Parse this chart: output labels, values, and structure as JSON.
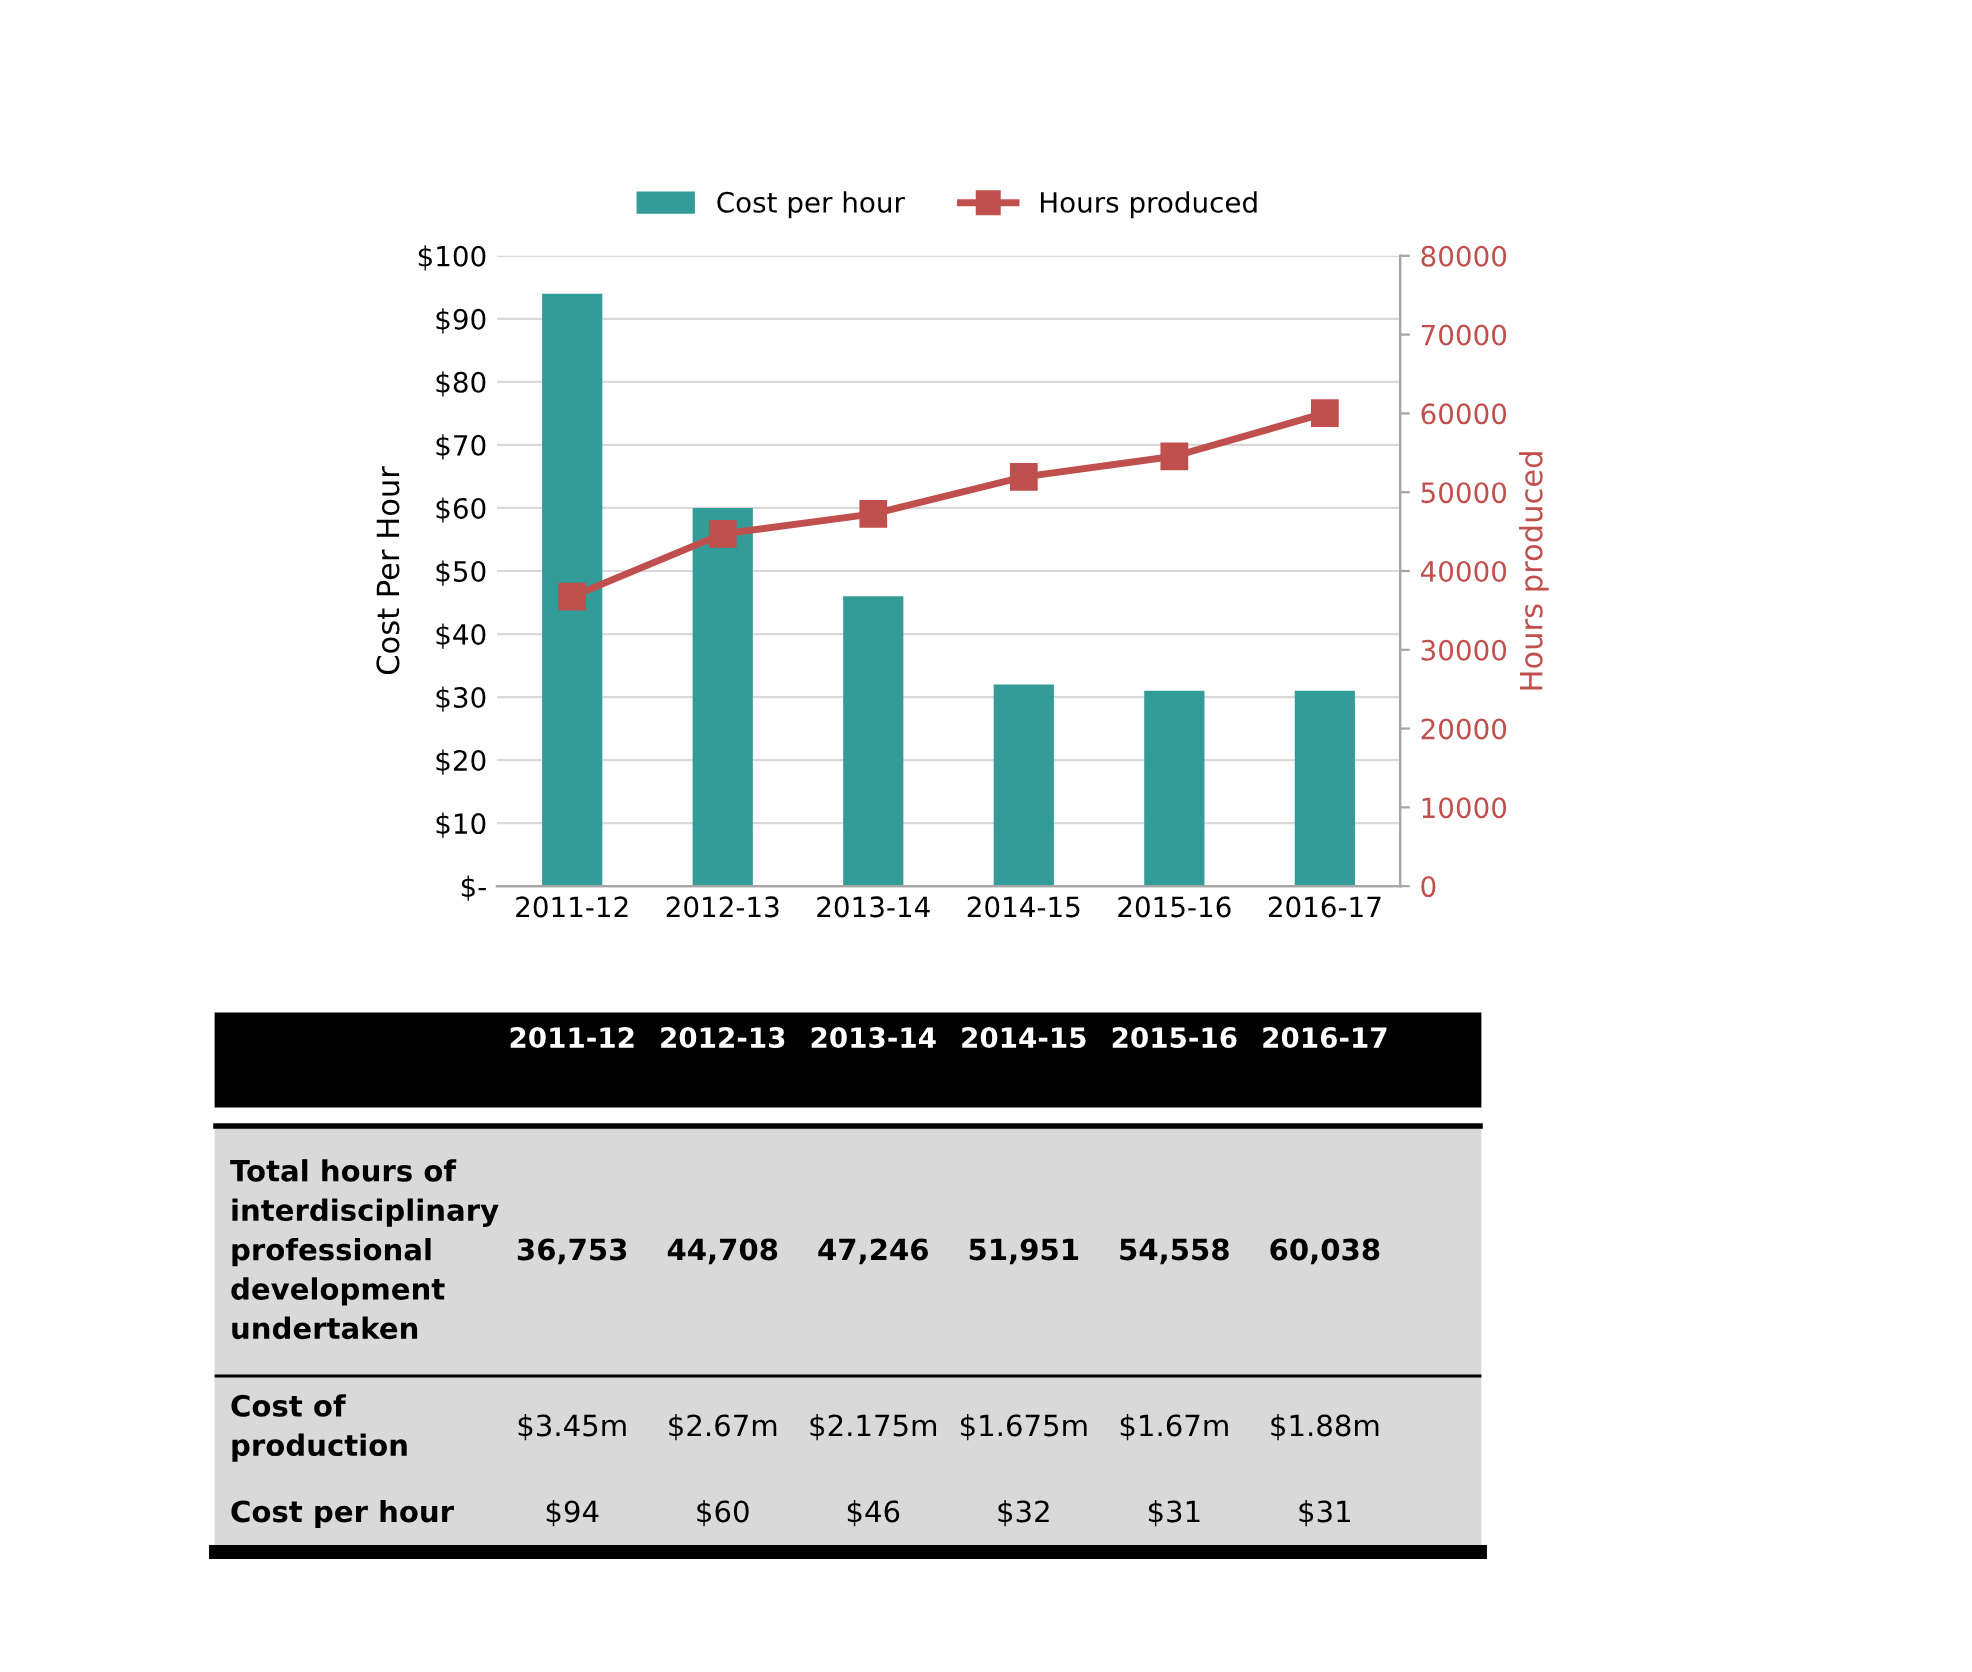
{
  "chart_data": {
    "type": "bar",
    "categories": [
      "2011-12",
      "2012-13",
      "2013-14",
      "2014-15",
      "2015-16",
      "2016-17"
    ],
    "series": [
      {
        "name": "Cost per hour",
        "color": "#339c99",
        "values": [
          94,
          60,
          46,
          32,
          31,
          31
        ],
        "value_labels": [
          "$94",
          "$60",
          "$46",
          "$32",
          "$31",
          "$31"
        ]
      },
      {
        "name": "Hours produced",
        "type": "line",
        "axis": "y2",
        "color": "#c0504d",
        "marker": "square",
        "values": [
          36753,
          44708,
          47246,
          51951,
          54558,
          60038
        ],
        "value_labels": [
          "36,753",
          "44,708",
          "47,246",
          "51,951",
          "54,558",
          "60,038"
        ]
      }
    ],
    "ylabel": "Cost Per Hour",
    "y2label": "Hours produced",
    "ylim": [
      0,
      100
    ],
    "yticks": [
      {
        "value": 0,
        "label": "$-"
      },
      {
        "value": 10,
        "label": "$10"
      },
      {
        "value": 20,
        "label": "$20"
      },
      {
        "value": 30,
        "label": "$30"
      },
      {
        "value": 40,
        "label": "$40"
      },
      {
        "value": 50,
        "label": "$50"
      },
      {
        "value": 60,
        "label": "$60"
      },
      {
        "value": 70,
        "label": "$70"
      },
      {
        "value": 80,
        "label": "$80"
      },
      {
        "value": 90,
        "label": "$90"
      },
      {
        "value": 100,
        "label": "$100"
      }
    ],
    "y2lim": [
      0,
      80000
    ],
    "y2ticks": [
      0,
      10000,
      20000,
      30000,
      40000,
      50000,
      60000,
      70000,
      80000
    ],
    "grid": "y",
    "legend": "top",
    "annotations": [
      "Total hours of interdisciplinary professional development undertaken",
      "Cost of production",
      "Cost per hour",
      "$3.45m",
      "$2.67m",
      "$2.175m",
      "$1.675m",
      "$1.67m",
      "$1.88m"
    ]
  }
}
